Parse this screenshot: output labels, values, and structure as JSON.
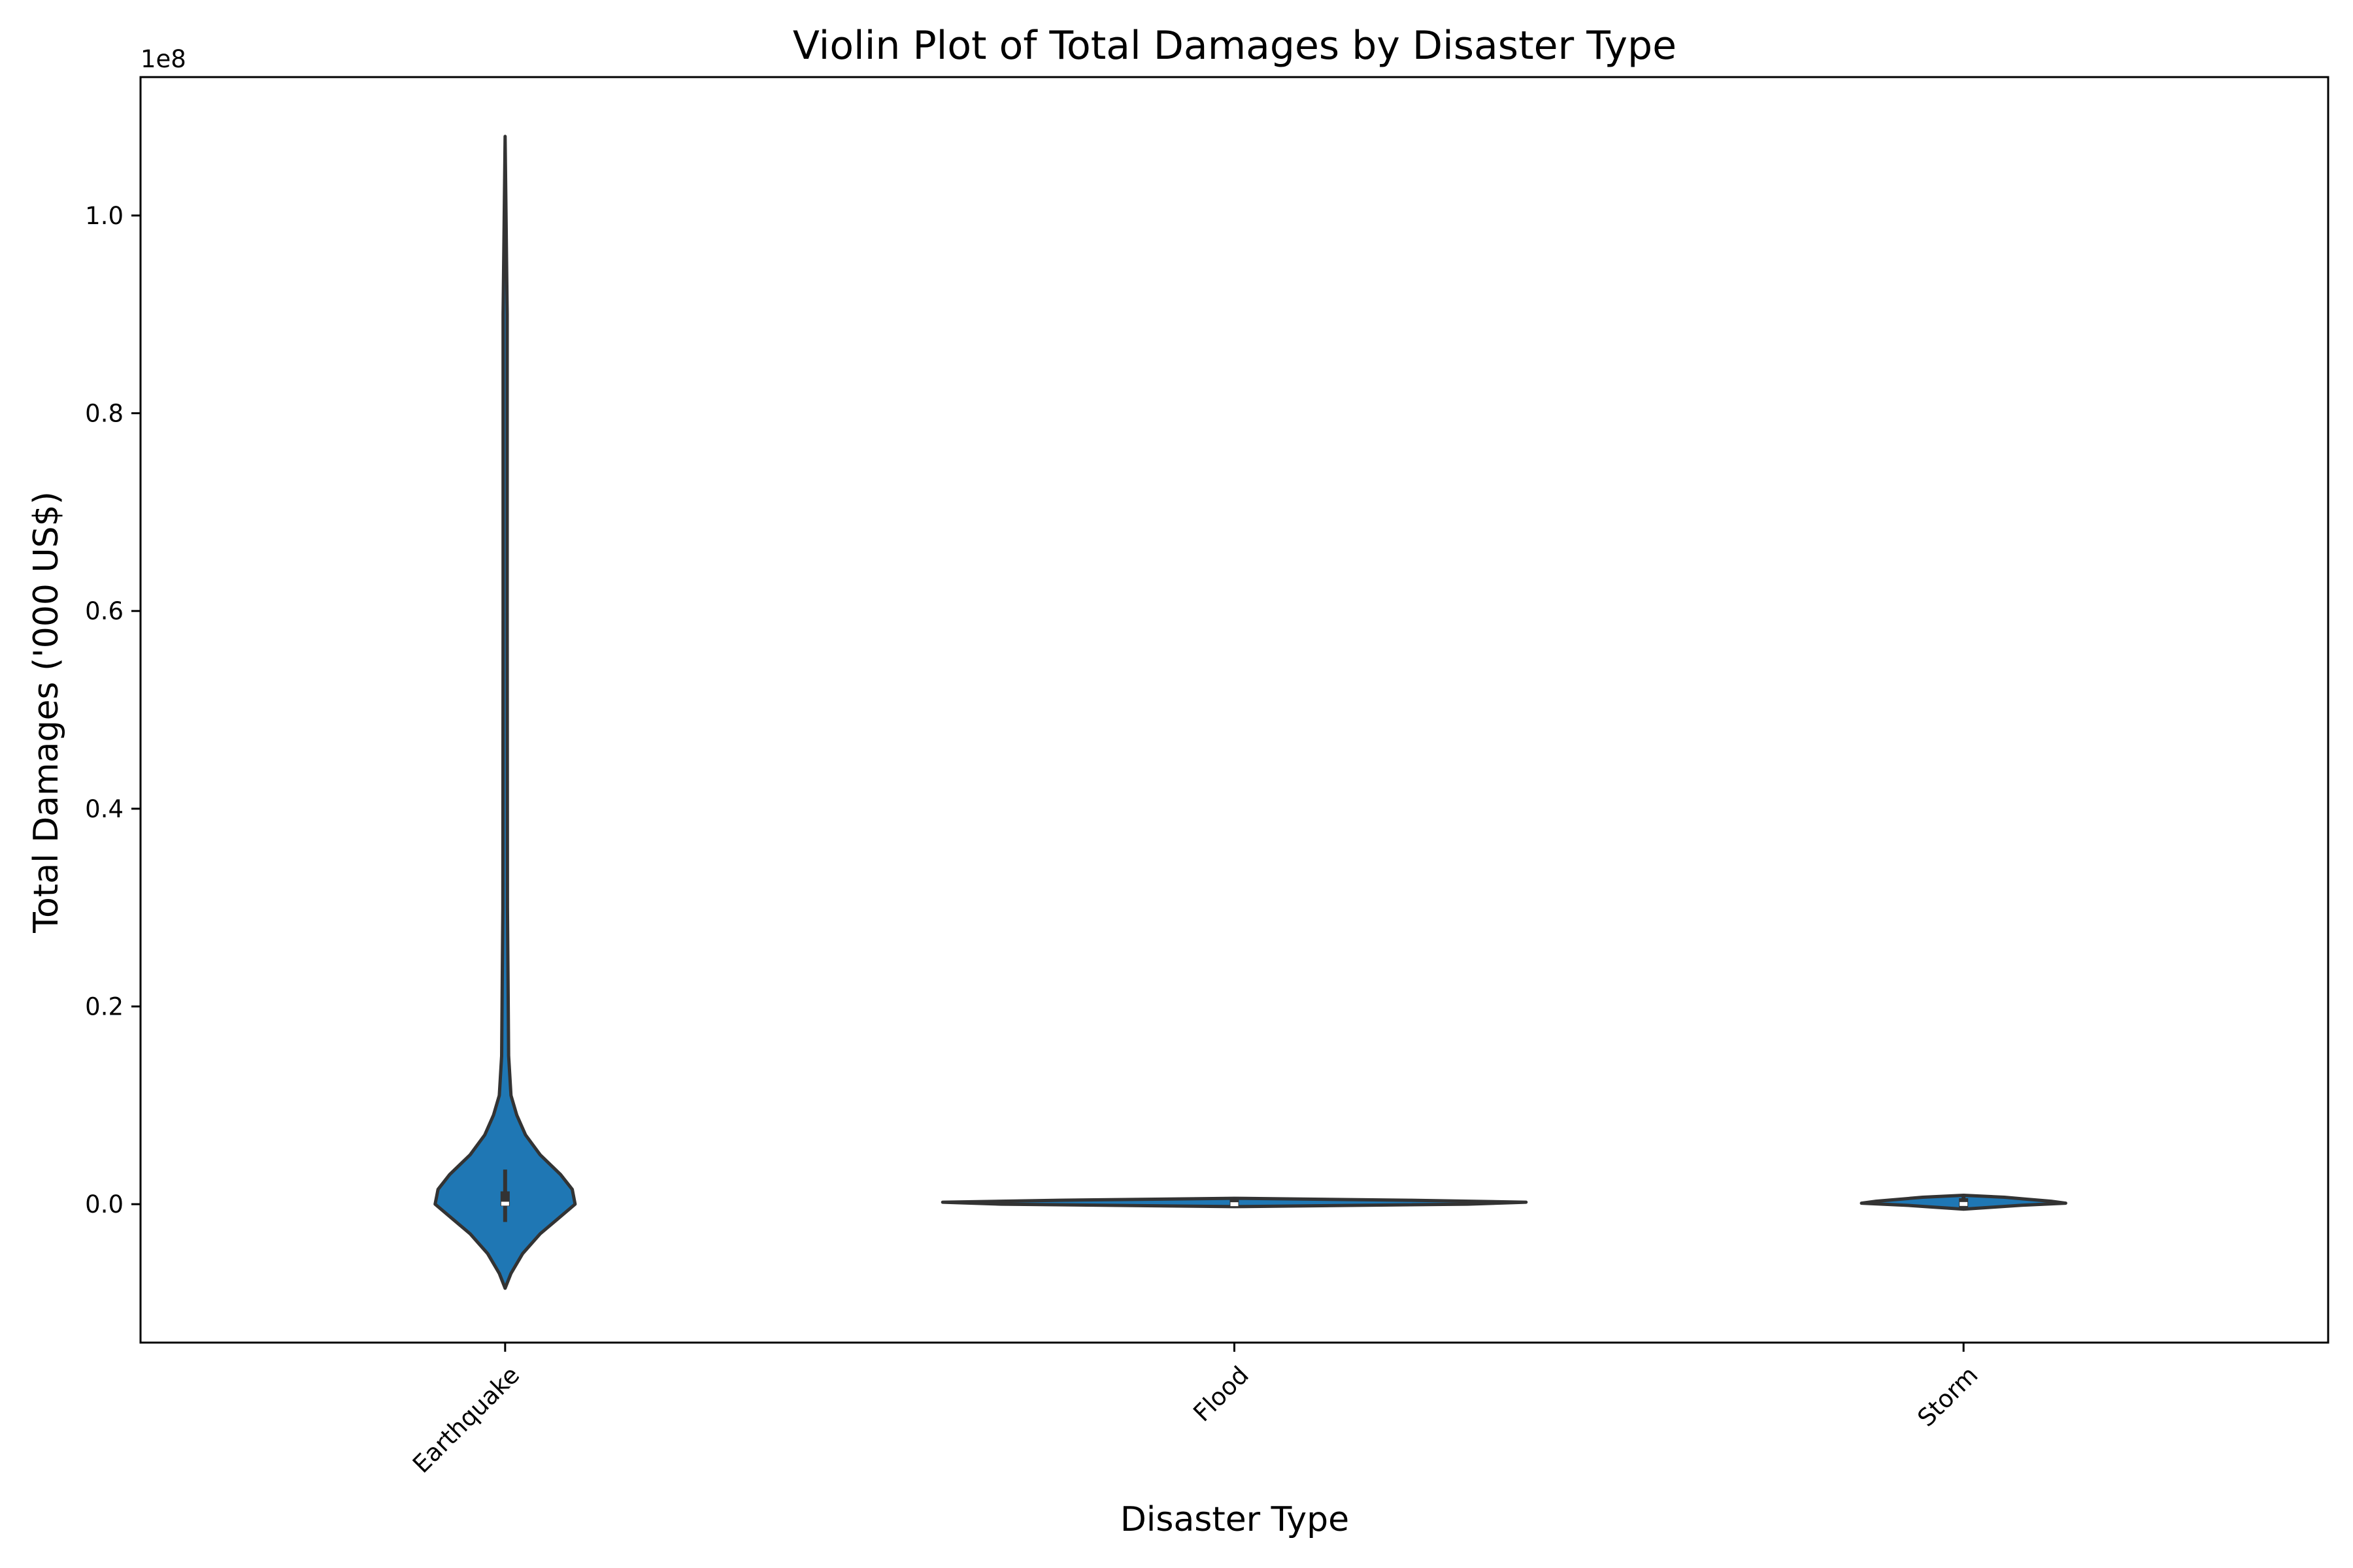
{
  "chart_data": {
    "type": "violin",
    "title": "Violin Plot of Total Damages by Disaster Type",
    "xlabel": "Disaster Type",
    "ylabel": "Total Damages ('000 US$)",
    "y_offset_label": "1e8",
    "y_scale_factor": 100000000,
    "ylim": [
      -14000000,
      114000000
    ],
    "yticks": [
      0,
      20000000,
      40000000,
      60000000,
      80000000,
      100000000
    ],
    "ytick_labels": [
      "0.0",
      "0.2",
      "0.4",
      "0.6",
      "0.8",
      "1.0"
    ],
    "tick_label_rotation": 45,
    "color": "#1f77b4",
    "outline_color": "#333333",
    "categories": [
      "Earthquake",
      "Flood",
      "Storm"
    ],
    "violins": [
      {
        "category": "Earthquake",
        "q1": -200000,
        "median": 50000,
        "q3": 1300000,
        "whisker_low": -1800000,
        "whisker_high": 3500000,
        "profile": [
          [
            -8500000,
            0
          ],
          [
            -7000000,
            0.02
          ],
          [
            -5000000,
            0.06
          ],
          [
            -3000000,
            0.12
          ],
          [
            -1500000,
            0.18
          ],
          [
            0,
            0.24
          ],
          [
            1500000,
            0.23
          ],
          [
            3000000,
            0.19
          ],
          [
            5000000,
            0.12
          ],
          [
            7000000,
            0.07
          ],
          [
            9000000,
            0.04
          ],
          [
            11000000,
            0.02
          ],
          [
            15000000,
            0.012
          ],
          [
            30000000,
            0.008
          ],
          [
            60000000,
            0.007
          ],
          [
            90000000,
            0.007
          ],
          [
            108000000,
            0
          ]
        ]
      },
      {
        "category": "Flood",
        "q1": -250000,
        "median": 0,
        "q3": 500000,
        "whisker_low": -300000,
        "whisker_high": 550000,
        "profile": [
          [
            -250000,
            0
          ],
          [
            0,
            0.8
          ],
          [
            200000,
            1.0
          ],
          [
            400000,
            0.6
          ],
          [
            600000,
            0
          ]
        ]
      },
      {
        "category": "Storm",
        "q1": -350000,
        "median": 20000,
        "q3": 600000,
        "whisker_low": -500000,
        "whisker_high": 800000,
        "profile": [
          [
            -500000,
            0
          ],
          [
            -300000,
            0.1
          ],
          [
            -100000,
            0.2
          ],
          [
            100000,
            0.35
          ],
          [
            300000,
            0.3
          ],
          [
            500000,
            0.22
          ],
          [
            700000,
            0.14
          ],
          [
            900000,
            0
          ]
        ]
      }
    ]
  }
}
